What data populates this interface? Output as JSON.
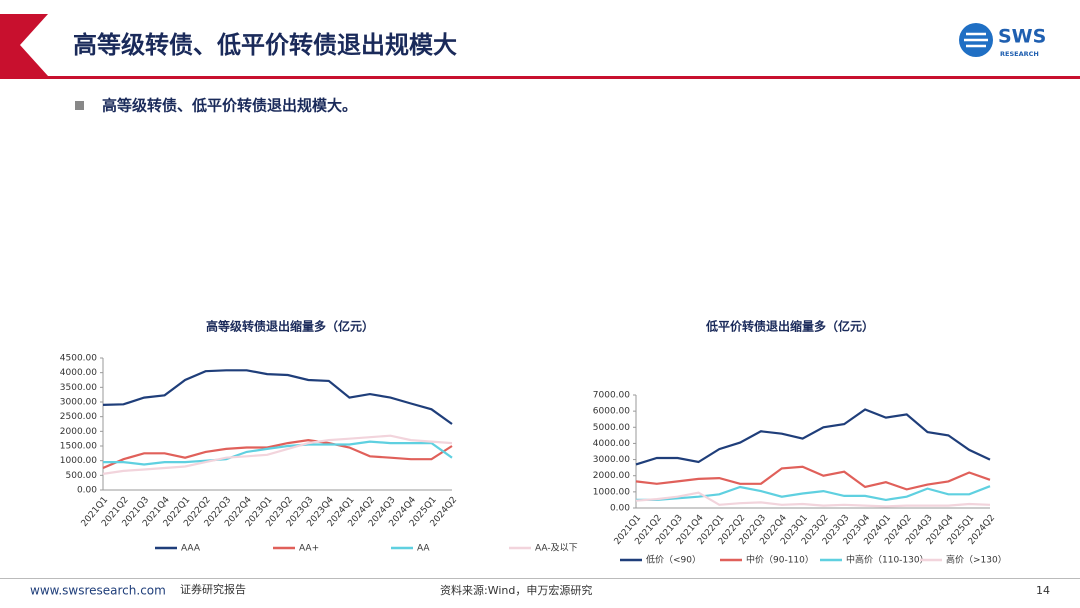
{
  "header": {
    "title": "高等级转债、低平价转债退出规模大",
    "logo": "SWS",
    "logo_sub": "RESEARCH"
  },
  "bullet": "高等级转债、低平价转债退出规模大。",
  "footer": {
    "site": "www.swsresearch.com",
    "report": "证券研究报告",
    "source": "资料来源:Wind，申万宏源研究",
    "page": "14"
  },
  "chart_data": [
    {
      "type": "line",
      "title": "高等级转债退出缩量多（亿元）",
      "categories": [
        "2021Q1",
        "2021Q2",
        "2021Q3",
        "2021Q4",
        "2022Q1",
        "2022Q2",
        "2022Q3",
        "2022Q4",
        "2023Q1",
        "2023Q2",
        "2023Q3",
        "2023Q4",
        "2024Q1",
        "2024Q2",
        "2024Q3",
        "2024Q4",
        "2025Q1",
        "2024Q2"
      ],
      "series": [
        {
          "name": "AAA",
          "color": "#1f3e7a",
          "values": [
            2900,
            2920,
            3150,
            3230,
            3750,
            4050,
            4080,
            4080,
            3950,
            3920,
            3750,
            3720,
            3150,
            3270,
            3150,
            2950,
            2750,
            2250
          ]
        },
        {
          "name": "AA+",
          "color": "#e0605a",
          "values": [
            750,
            1050,
            1250,
            1250,
            1100,
            1300,
            1400,
            1450,
            1450,
            1600,
            1700,
            1600,
            1450,
            1150,
            1100,
            1050,
            1050,
            1500
          ]
        },
        {
          "name": "AA",
          "color": "#5fd0e0",
          "values": [
            950,
            950,
            870,
            950,
            950,
            1000,
            1050,
            1300,
            1400,
            1500,
            1550,
            1550,
            1550,
            1650,
            1600,
            1600,
            1600,
            1100
          ]
        },
        {
          "name": "AA-及以下",
          "color": "#f2d4dc",
          "values": [
            550,
            650,
            700,
            750,
            800,
            950,
            1100,
            1150,
            1200,
            1400,
            1600,
            1700,
            1750,
            1800,
            1850,
            1700,
            1650,
            1600
          ]
        }
      ],
      "ylim": [
        0,
        4500
      ],
      "yticks": [
        {
          "value": 0,
          "label": "0.00"
        },
        {
          "value": 500,
          "label": "500.00"
        },
        {
          "value": 1000,
          "label": "1000.00"
        },
        {
          "value": 1500,
          "label": "1500.00"
        },
        {
          "value": 2000,
          "label": "2000.00"
        },
        {
          "value": 2500,
          "label": "2500.00"
        },
        {
          "value": 3000,
          "label": "3000.00"
        },
        {
          "value": 3500,
          "label": "3500.00"
        },
        {
          "value": 4000,
          "label": "4000.00"
        },
        {
          "value": 4500,
          "label": "4500.00"
        }
      ],
      "legend": "bottom"
    },
    {
      "type": "line",
      "title": "低平价转债退出缩量多（亿元）",
      "categories": [
        "2021Q1",
        "2021Q2",
        "2021Q3",
        "2021Q4",
        "2022Q1",
        "2022Q2",
        "2022Q3",
        "2022Q4",
        "2023Q1",
        "2023Q2",
        "2023Q3",
        "2023Q4",
        "2024Q1",
        "2024Q2",
        "2024Q3",
        "2024Q4",
        "2025Q1",
        "2024Q2"
      ],
      "series": [
        {
          "name": "低价（<90）",
          "color": "#1f3e7a",
          "values": [
            2700,
            3100,
            3100,
            2850,
            3650,
            4050,
            4750,
            4600,
            4300,
            5000,
            5200,
            6100,
            5600,
            5800,
            4700,
            4500,
            3600,
            3000
          ]
        },
        {
          "name": "中价（90-110）",
          "color": "#e0605a",
          "values": [
            1650,
            1500,
            1650,
            1800,
            1850,
            1500,
            1500,
            2450,
            2550,
            2000,
            2250,
            1300,
            1600,
            1150,
            1450,
            1650,
            2200,
            1750
          ]
        },
        {
          "name": "中高价（110-130）",
          "color": "#5fd0e0",
          "values": [
            500,
            500,
            600,
            700,
            850,
            1300,
            1050,
            700,
            900,
            1050,
            750,
            750,
            500,
            700,
            1200,
            850,
            850,
            1350
          ]
        },
        {
          "name": "高价（>130）",
          "color": "#f2d4dc",
          "values": [
            450,
            550,
            700,
            950,
            200,
            300,
            350,
            200,
            250,
            150,
            200,
            150,
            100,
            150,
            150,
            150,
            250,
            200
          ]
        }
      ],
      "ylim": [
        0,
        7000
      ],
      "yticks": [
        {
          "value": 0,
          "label": "0.00"
        },
        {
          "value": 1000,
          "label": "1000.00"
        },
        {
          "value": 2000,
          "label": "2000.00"
        },
        {
          "value": 3000,
          "label": "3000.00"
        },
        {
          "value": 4000,
          "label": "4000.00"
        },
        {
          "value": 5000,
          "label": "5000.00"
        },
        {
          "value": 6000,
          "label": "6000.00"
        },
        {
          "value": 7000,
          "label": "7000.00"
        }
      ],
      "legend": "bottom"
    }
  ]
}
